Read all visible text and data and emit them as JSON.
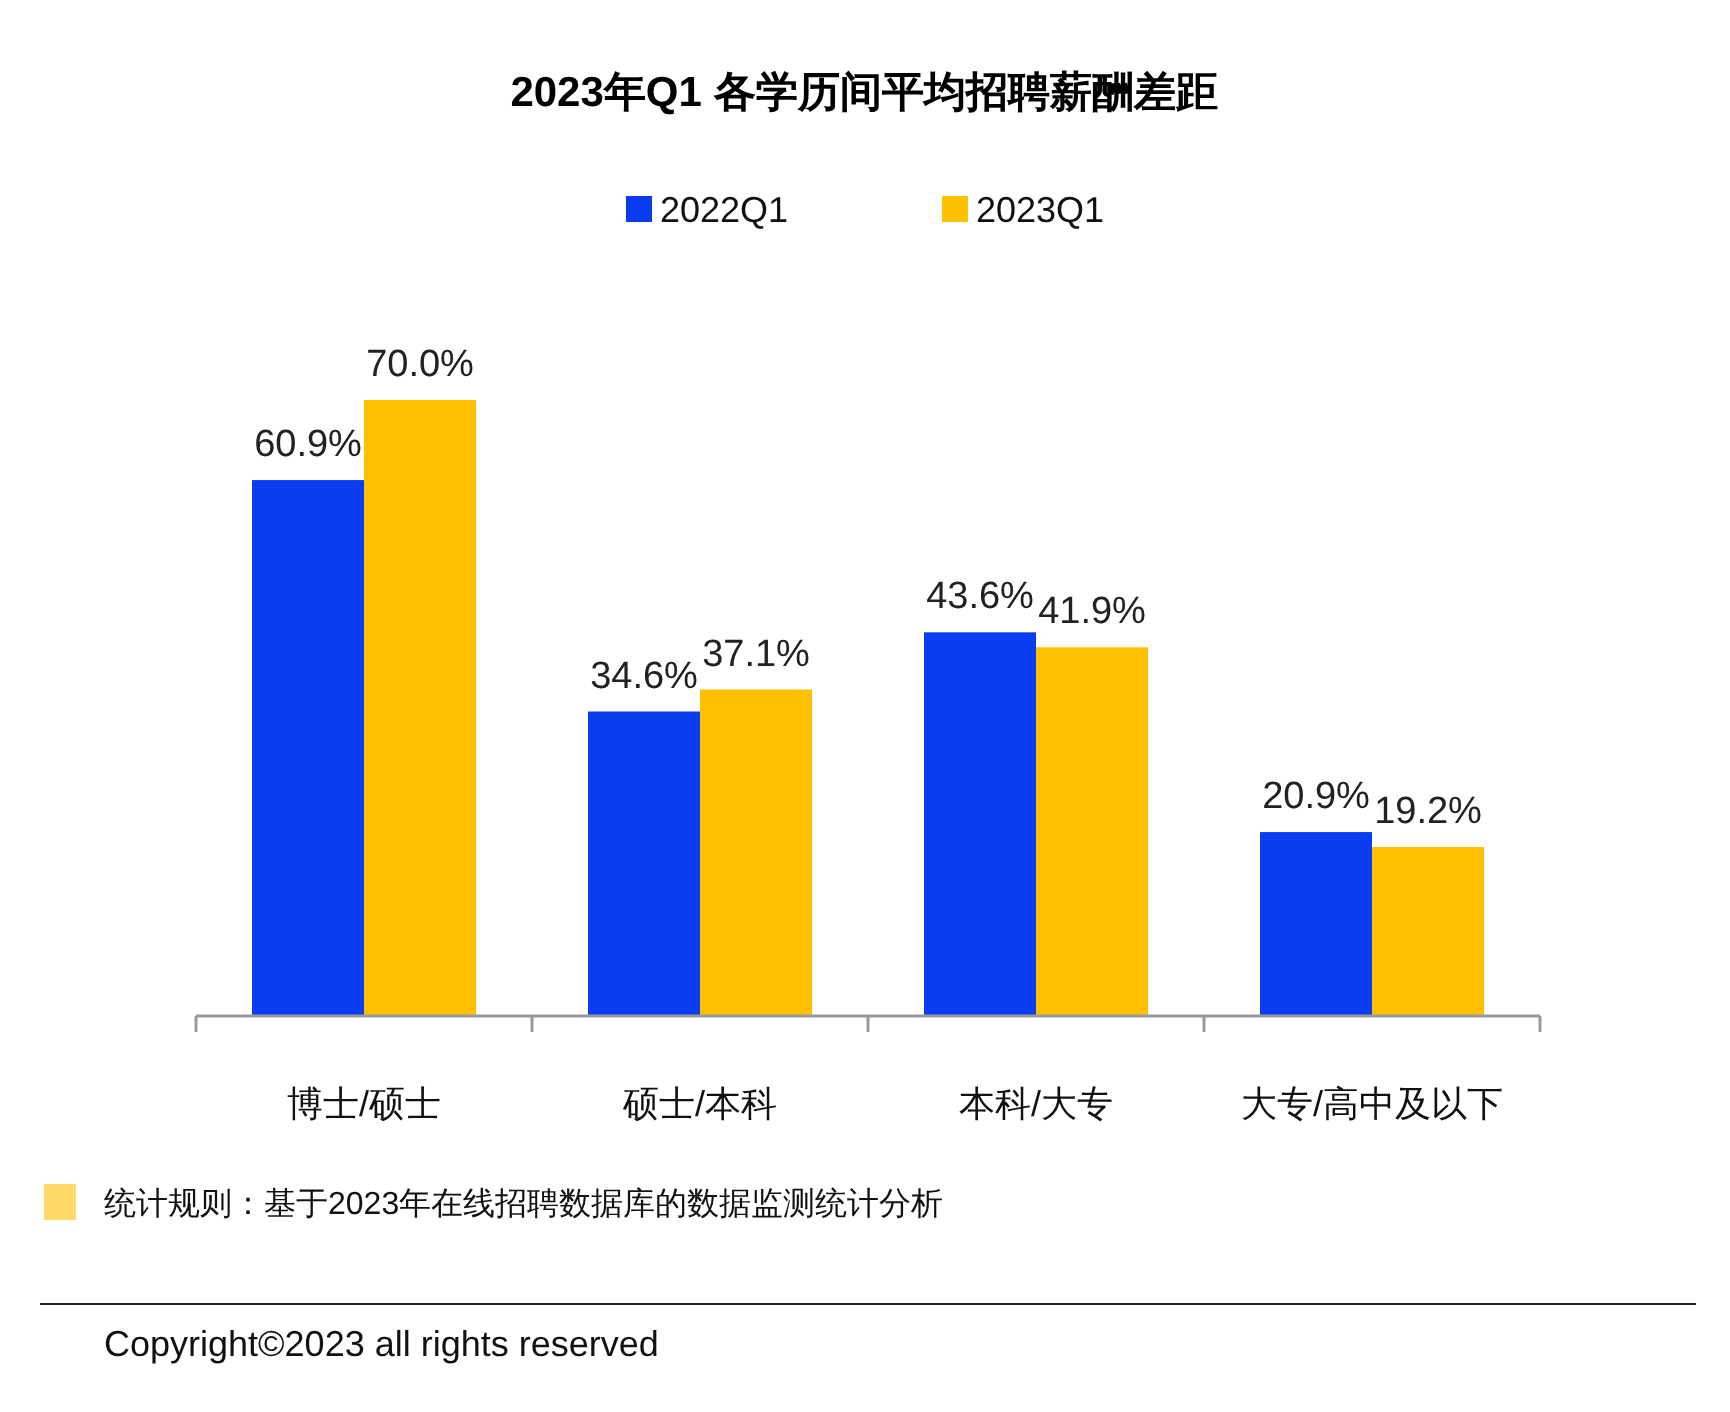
{
  "chart_data": {
    "type": "bar",
    "title": "2023年Q1 各学历间平均招聘薪酬差距",
    "categories": [
      "博士/硕士",
      "硕士/本科",
      "本科/大专",
      "大专/高中及以下"
    ],
    "series": [
      {
        "name": "2022Q1",
        "color": "#0a3cf0",
        "values": [
          60.9,
          34.6,
          43.6,
          20.9
        ],
        "value_labels": [
          "60.9%",
          "34.6%",
          "43.6%",
          "20.9%"
        ]
      },
      {
        "name": "2023Q1",
        "color": "#ffc000",
        "values": [
          70.0,
          37.1,
          41.9,
          19.2
        ],
        "value_labels": [
          "70.0%",
          "37.1%",
          "41.9%",
          "19.2%"
        ]
      }
    ],
    "legend": "top",
    "annotations": [
      "统计规则：基于2023年在线招聘数据库的数据监测统计分析",
      "Copyright©2023 all rights reserved"
    ]
  }
}
